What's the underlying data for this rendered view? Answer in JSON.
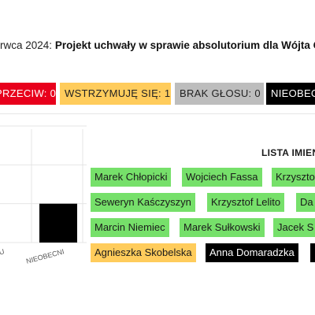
{
  "header": {
    "date_fragment": "rwca 2024:",
    "title": "Projekt uchwały w sprawie absolutorium dla Wójta G"
  },
  "badges": {
    "against": "PRZECIW: 0",
    "abstain": "WSTRZYMUJĘ SIĘ: 1",
    "no_vote": "BRAK GŁOSU: 0",
    "absent": "NIEOBECNI"
  },
  "colors": {
    "for": "#76e06a",
    "against": "#e8001c",
    "abstain": "#ffcc5c",
    "no_vote": "#bdbdbd",
    "absent": "#000000"
  },
  "chart_data": {
    "type": "bar",
    "categories": [
      "SU",
      "NIEOBECNI"
    ],
    "values": [
      0,
      1
    ],
    "ylim": [
      0,
      3
    ],
    "grid": true
  },
  "list": {
    "title": "LISTA IMIEN",
    "names": [
      {
        "name": "Marek Chłopicki",
        "vote": "for"
      },
      {
        "name": "Wojciech Fassa",
        "vote": "for"
      },
      {
        "name": "Krzyszto",
        "vote": "for"
      },
      {
        "name": "Seweryn Kaśczyszyn",
        "vote": "for"
      },
      {
        "name": "Krzysztof Lelito",
        "vote": "for"
      },
      {
        "name": "Da",
        "vote": "for"
      },
      {
        "name": "Marcin Niemiec",
        "vote": "for"
      },
      {
        "name": "Marek Sułkowski",
        "vote": "for"
      },
      {
        "name": "Jacek S",
        "vote": "for"
      },
      {
        "name": "Agnieszka Skobelska",
        "vote": "abstain"
      },
      {
        "name": "Anna Domaradzka",
        "vote": "absent"
      },
      {
        "name": "",
        "vote": "absent"
      }
    ]
  }
}
